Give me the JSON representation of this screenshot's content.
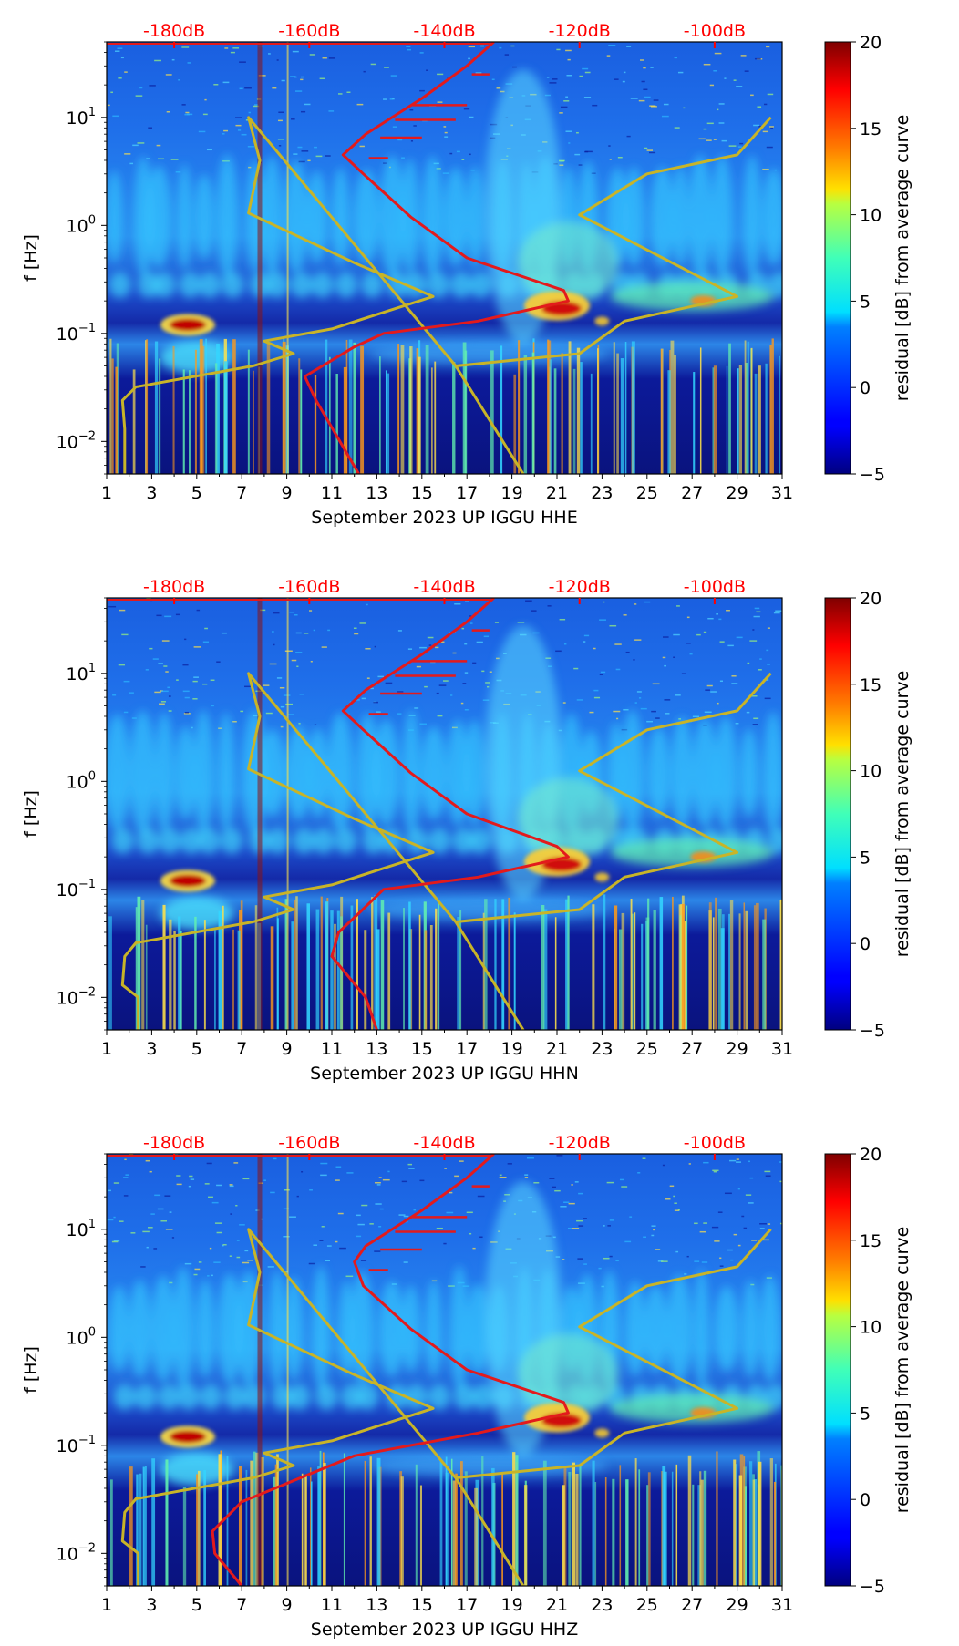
{
  "figure": {
    "type": "spectrogram-panels",
    "colorbar_label": "residual [dB] from average curve",
    "colorbar_ticks": [
      "20",
      "15",
      "10",
      "5",
      "0",
      "−5"
    ],
    "colorbar_range": [
      -5,
      20
    ],
    "ylabel": "f [Hz]",
    "y_ticks": [
      {
        "base": "10",
        "exp": "1"
      },
      {
        "base": "10",
        "exp": "0"
      },
      {
        "base": "10",
        "exp": "−1"
      },
      {
        "base": "10",
        "exp": "−2"
      }
    ],
    "x_ticks": [
      "1",
      "3",
      "5",
      "7",
      "9",
      "11",
      "13",
      "15",
      "17",
      "19",
      "21",
      "23",
      "25",
      "27",
      "29",
      "31"
    ],
    "db_ticks": [
      "-180dB",
      "-160dB",
      "-140dB",
      "-120dB",
      "-100dB"
    ],
    "colors": {
      "red_curve": "#e31a1c",
      "yellow_curve": "#c8b428",
      "db_text": "#ff0000",
      "background_noise": "#1e4fd8"
    }
  },
  "chart_data": [
    {
      "type": "heatmap",
      "title": "",
      "xlabel": "September 2023 UP IGGU  HHE",
      "ylabel": "f [Hz]",
      "xlim": [
        1,
        31
      ],
      "ylim": [
        0.005,
        50
      ],
      "yscale": "log",
      "db_axis_range": [
        -190,
        -90
      ],
      "yellow_line": [
        [
          1.8,
          0.005
        ],
        [
          1.8,
          0.013
        ],
        [
          1.7,
          0.024
        ],
        [
          2.3,
          0.032
        ],
        [
          7.5,
          0.05
        ],
        [
          9.3,
          0.065
        ],
        [
          8.0,
          0.085
        ],
        [
          11,
          0.11
        ],
        [
          15.5,
          0.22
        ],
        [
          12,
          0.45
        ],
        [
          7.3,
          1.3
        ],
        [
          7.8,
          4
        ],
        [
          7.3,
          10
        ],
        [
          16.5,
          0.05
        ],
        [
          19.5,
          0.005
        ],
        [
          16.5,
          0.05
        ],
        [
          22,
          0.065
        ],
        [
          24,
          0.13
        ],
        [
          29,
          0.22
        ],
        [
          22,
          1.25
        ],
        [
          25,
          3
        ],
        [
          29,
          4.5
        ],
        [
          30.5,
          10
        ]
      ],
      "red_line": [
        [
          12.2,
          0.005
        ],
        [
          10.3,
          0.024
        ],
        [
          9.8,
          0.04
        ],
        [
          12.0,
          0.075
        ],
        [
          13.3,
          0.1
        ],
        [
          17.5,
          0.13
        ],
        [
          21.5,
          0.2
        ],
        [
          21.3,
          0.25
        ],
        [
          17,
          0.5
        ],
        [
          14.5,
          1.2
        ],
        [
          12.4,
          3
        ],
        [
          11.5,
          4.5
        ],
        [
          12.5,
          7
        ],
        [
          15,
          15
        ],
        [
          17,
          30
        ],
        [
          18.2,
          50
        ]
      ]
    },
    {
      "type": "heatmap",
      "title": "",
      "xlabel": "September 2023 UP IGGU  HHN",
      "ylabel": "f [Hz]",
      "xlim": [
        1,
        31
      ],
      "ylim": [
        0.005,
        50
      ],
      "yscale": "log",
      "db_axis_range": [
        -190,
        -90
      ],
      "yellow_line": [
        [
          2.4,
          0.005
        ],
        [
          2.4,
          0.01
        ],
        [
          1.7,
          0.013
        ],
        [
          1.8,
          0.024
        ],
        [
          2.3,
          0.032
        ],
        [
          7.5,
          0.05
        ],
        [
          9.3,
          0.065
        ],
        [
          8.0,
          0.085
        ],
        [
          11,
          0.11
        ],
        [
          15.5,
          0.22
        ],
        [
          12,
          0.45
        ],
        [
          7.3,
          1.3
        ],
        [
          7.8,
          4
        ],
        [
          7.3,
          10
        ],
        [
          16.5,
          0.05
        ],
        [
          19.5,
          0.005
        ],
        [
          16.5,
          0.05
        ],
        [
          22,
          0.065
        ],
        [
          24,
          0.13
        ],
        [
          29,
          0.22
        ],
        [
          22,
          1.25
        ],
        [
          25,
          3
        ],
        [
          29,
          4.5
        ],
        [
          30.5,
          10
        ]
      ],
      "red_line": [
        [
          13.0,
          0.005
        ],
        [
          12.5,
          0.01
        ],
        [
          11.0,
          0.024
        ],
        [
          11.3,
          0.04
        ],
        [
          12.2,
          0.06
        ],
        [
          13.3,
          0.1
        ],
        [
          17.5,
          0.13
        ],
        [
          21.5,
          0.2
        ],
        [
          21.0,
          0.25
        ],
        [
          17,
          0.5
        ],
        [
          14.5,
          1.2
        ],
        [
          12.4,
          3
        ],
        [
          11.5,
          4.5
        ],
        [
          12.5,
          7
        ],
        [
          15,
          15
        ],
        [
          17,
          30
        ],
        [
          18.2,
          50
        ]
      ]
    },
    {
      "type": "heatmap",
      "title": "",
      "xlabel": "September 2023 UP IGGU  HHZ",
      "ylabel": "f [Hz]",
      "xlim": [
        1,
        31
      ],
      "ylim": [
        0.005,
        50
      ],
      "yscale": "log",
      "db_axis_range": [
        -190,
        -90
      ],
      "yellow_line": [
        [
          2.4,
          0.005
        ],
        [
          2.4,
          0.01
        ],
        [
          1.7,
          0.013
        ],
        [
          1.8,
          0.024
        ],
        [
          2.3,
          0.032
        ],
        [
          7.5,
          0.05
        ],
        [
          9.3,
          0.065
        ],
        [
          8.0,
          0.085
        ],
        [
          11,
          0.11
        ],
        [
          15.5,
          0.22
        ],
        [
          12,
          0.45
        ],
        [
          7.3,
          1.3
        ],
        [
          7.8,
          4
        ],
        [
          7.3,
          10
        ],
        [
          16.5,
          0.05
        ],
        [
          19.5,
          0.005
        ],
        [
          16.5,
          0.05
        ],
        [
          22,
          0.065
        ],
        [
          24,
          0.13
        ],
        [
          29,
          0.22
        ],
        [
          22,
          1.25
        ],
        [
          25,
          3
        ],
        [
          29,
          4.5
        ],
        [
          30.5,
          10
        ]
      ],
      "red_line": [
        [
          7.0,
          0.005
        ],
        [
          5.8,
          0.01
        ],
        [
          5.7,
          0.016
        ],
        [
          7.0,
          0.03
        ],
        [
          12.0,
          0.08
        ],
        [
          17.5,
          0.13
        ],
        [
          21.5,
          0.2
        ],
        [
          21.3,
          0.25
        ],
        [
          17,
          0.5
        ],
        [
          14.5,
          1.2
        ],
        [
          12.4,
          3
        ],
        [
          12,
          5
        ],
        [
          12.5,
          7
        ],
        [
          15,
          15
        ],
        [
          17,
          30
        ],
        [
          18.2,
          50
        ]
      ]
    }
  ]
}
